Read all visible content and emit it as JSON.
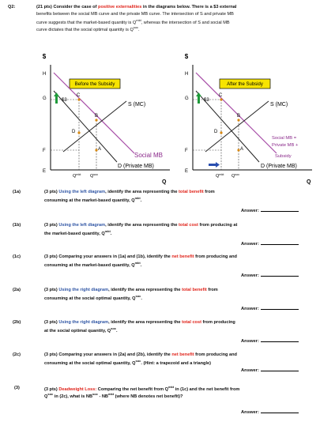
{
  "header": {
    "number": "Q2:",
    "line1_a": "(21 pts) Consider the case of ",
    "line1_red": "positive externalities",
    "line1_b": " in the diagrams below. There is a $3 external",
    "line2": "benefits between the social MB curve and the private MB curve. The intersection of S and private MB",
    "line3": "curve suggests that the market-based quantity is Q",
    "line3_sup": "mkt",
    "line3_b": ", whereas the intersection of S and social MB",
    "line4": "curve dictates that the social optimal quantity is Q",
    "line4_sup": "soc",
    "line4_b": "."
  },
  "left_diagram": {
    "y_axis_label": "$",
    "x_axis_label": "Q",
    "title_box": "Before the Subsidy",
    "arrow_label": "$3",
    "price_labels": [
      "H",
      "G",
      "F",
      "E"
    ],
    "points": [
      "C",
      "B",
      "D",
      "A"
    ],
    "supply_label": "S (MC)",
    "social_label": "Social MB",
    "private_label": "D (Private MB)",
    "qmkt_label": "Q",
    "qmkt_sup": "mkt",
    "qsoc_label": "Q",
    "qsoc_sup": "soc"
  },
  "right_diagram": {
    "y_axis_label": "$",
    "x_axis_label": "Q",
    "title_box": "After the Subsidy",
    "arrow_label": "$3",
    "price_labels": [
      "H",
      "G",
      "F",
      "E"
    ],
    "points": [
      "C",
      "B",
      "D",
      "A"
    ],
    "supply_label": "S (MC)",
    "social_label_1": "Social MB =",
    "social_label_2": "Private MB +",
    "social_label_3": "Subsidy",
    "private_label": "D (Private MB)",
    "qmkt_label": "Q",
    "qmkt_sup": "mkt",
    "qsoc_label": "Q",
    "qsoc_sup": "soc"
  },
  "questions": [
    {
      "num": "(1a)",
      "l1_a": "(3 pts) ",
      "l1_blue": "Using the left diagram",
      "l1_b": ", identify the area representing the ",
      "l1_red": "total benefit",
      "l1_c": " from",
      "l2": "consuming at the market-based quantity, Q",
      "l2_sup": "mkt",
      "l2_b": ".",
      "answer": "Answer:"
    },
    {
      "num": "(1b)",
      "l1_a": "(3 pts) ",
      "l1_blue": "Using the left diagram",
      "l1_b": ", identify the area representing the ",
      "l1_red": "total cost",
      "l1_c": " from producing at",
      "l2": "the market-based quantity, Q",
      "l2_sup": "mkt",
      "l2_b": ".",
      "answer": "Answer:"
    },
    {
      "num": "(1c)",
      "l1_a": "(3 pts) Comparing your answers in (1a) and (1b), identify the ",
      "l1_blue": "",
      "l1_b": "",
      "l1_red": "net benefit",
      "l1_c": " from producing and",
      "l2": "consuming at the market-based quantity, Q",
      "l2_sup": "mkt",
      "l2_b": ".",
      "answer": "Answer:"
    },
    {
      "num": "(2a)",
      "l1_a": "(3 pts) ",
      "l1_blue": "Using the right diagram",
      "l1_b": ", identify the area representing the ",
      "l1_red": "total benefit",
      "l1_c": " from",
      "l2": "consuming at the social optimal quantity, Q",
      "l2_sup": "soc",
      "l2_b": ".",
      "answer": "Answer:"
    },
    {
      "num": "(2b)",
      "l1_a": "(3 pts) ",
      "l1_blue": "Using the right diagram",
      "l1_b": ", identify the area representing the ",
      "l1_red": "total cost",
      "l1_c": " from producing",
      "l2": "at the social optimal quantity, Q",
      "l2_sup": "soc",
      "l2_b": ".",
      "answer": "Answer:"
    },
    {
      "num": "(2c)",
      "l1_a": "(3 pts) Comparing your answers in (2a) and (2b), identify the ",
      "l1_blue": "",
      "l1_b": "",
      "l1_red": "net benefit",
      "l1_c": " from producing and",
      "l2": "consuming at the social optimal quantity, Q",
      "l2_sup": "soc",
      "l2_b": ". (Hint: a trapezoid and a triangle)",
      "answer": "Answer:"
    },
    {
      "num": "(3)",
      "l1_a": "(3 pts) ",
      "l1_blue": "",
      "l1_b": "",
      "l1_red": "Deadweight Loss:",
      "l1_c": " Comparing the net benefit from Q",
      "l1_sup": "mkt",
      "l1_d": " in (1c) and the net benefit from",
      "l2": "Q",
      "l2_sup": "soc",
      "l2_b": " in (2c), what is NB",
      "l2_sup2": "soc",
      "l2_c": " - NB",
      "l2_sup3": "mkt",
      "l2_d": " (where NB denotes net benefit)?",
      "answer": "Answer:"
    }
  ],
  "colors": {
    "social_line": "#a64ca6",
    "private_line": "#222222",
    "supply_line": "#222222",
    "box_fill": "#f7e400",
    "arrow": "#1f9a3a",
    "blue_arrow": "#2a4fb0",
    "point_dot": "#d98a12",
    "red": "#e0241b",
    "blue": "#2f55a4"
  }
}
